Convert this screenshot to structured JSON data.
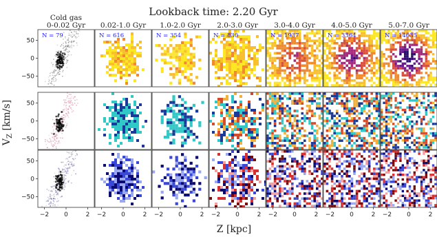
{
  "chart_data": {
    "type": "heatmap",
    "title": "Lookback time: 2.20 Gyr",
    "xlabel": "Z [kpc]",
    "ylabel": "V_Z [km/s]",
    "xlim": [
      -2.6,
      2.6
    ],
    "ylim": [
      -80,
      80
    ],
    "xticks": [
      -2,
      0,
      2
    ],
    "yticks": [
      50,
      0,
      -50
    ],
    "columns": [
      {
        "label": "Cold gas",
        "range": "0-0.02 Gyr",
        "n": "N = 79"
      },
      {
        "label": "",
        "range": "0.02-1.0 Gyr",
        "n": "N = 616"
      },
      {
        "label": "",
        "range": "1.0-2.0 Gyr",
        "n": "N = 354"
      },
      {
        "label": "",
        "range": "2.0-3.0 Gyr",
        "n": "N = 830"
      },
      {
        "label": "",
        "range": "3.0-4.0 Gyr",
        "n": "N = 1937"
      },
      {
        "label": "",
        "range": "4.0-5.0 Gyr",
        "n": "N = 3364"
      },
      {
        "label": "",
        "range": "5.0-7.0 Gyr",
        "n": "N = 14635"
      }
    ],
    "rows": [
      "density",
      "phase",
      "signed"
    ],
    "colors": {
      "density": [
        "#fde725",
        "#f9c02e",
        "#f08a2c",
        "#d7513f",
        "#a52c7a",
        "#6a1c8f",
        "#2d0f6e"
      ],
      "phase": [
        "#31c8c8",
        "#1a3a9a",
        "#d64a2a",
        "#f2b13a",
        "#ffffff"
      ],
      "signed": [
        "#0a0a70",
        "#3a48d8",
        "#9aa8f0",
        "#ffffff",
        "#f2a0a0",
        "#d83030",
        "#7a0a0a"
      ]
    }
  }
}
